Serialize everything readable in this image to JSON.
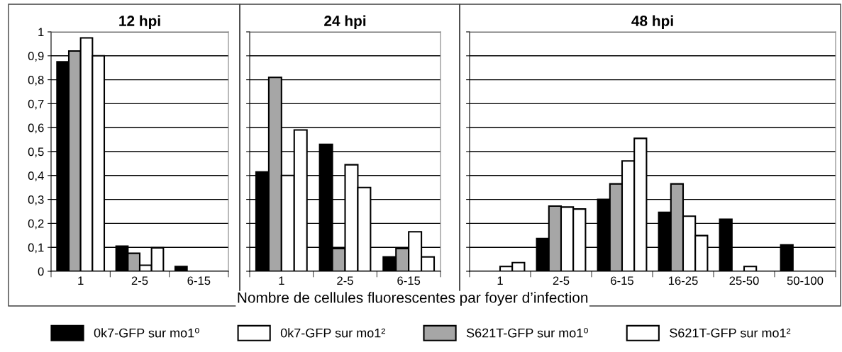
{
  "chart_data": [
    {
      "type": "bar",
      "title": "12 hpi",
      "categories": [
        "1",
        "2-5",
        "6-15"
      ],
      "ylim": [
        0,
        1
      ],
      "yticks": [
        0,
        {
          "value": 0.1,
          "label": "0,1"
        },
        {
          "value": 0.2,
          "label": "0,2"
        },
        {
          "value": 0.3,
          "label": "0,3"
        },
        {
          "value": 0.4,
          "label": "0,4"
        },
        {
          "value": 0.5,
          "label": "0,5"
        },
        {
          "value": 0.6,
          "label": "0,6"
        },
        {
          "value": 0.7,
          "label": "0,7"
        },
        {
          "value": 0.8,
          "label": "0,8"
        },
        {
          "value": 0.9,
          "label": "0,9"
        },
        1
      ],
      "grid": "y",
      "legend": "bottom",
      "series": [
        {
          "name": "0k7-GFP sur mo1⁰",
          "color": "#000000",
          "values": [
            0.875,
            0.105,
            0.02
          ]
        },
        {
          "name": "S621T-GFP sur mo1⁰",
          "color": "#a6a6a6",
          "values": [
            0.92,
            0.075,
            null
          ]
        },
        {
          "name": "0k7-GFP sur mo1²",
          "color": "#ffffff",
          "values": [
            0.975,
            0.025,
            null
          ]
        },
        {
          "name": "S621T-GFP sur mo1²",
          "color": "#ffffff",
          "values": [
            0.9,
            0.098,
            null
          ]
        }
      ]
    },
    {
      "type": "bar",
      "title": "24 hpi",
      "xlabel": "Nombre de cellules fluorescentes par foyer d’infection",
      "categories": [
        "1",
        "2-5",
        "6-15"
      ],
      "ylim": [
        0,
        1
      ],
      "yticks": [
        0,
        0.1,
        0.2,
        0.3,
        0.4,
        0.5,
        0.6,
        0.7,
        0.8,
        0.9,
        1
      ],
      "grid": "y",
      "tick_labels": "x",
      "series": [
        {
          "color": "#000000",
          "values": [
            0.415,
            0.53,
            0.06
          ]
        },
        {
          "color": "#a6a6a6",
          "values": [
            0.81,
            0.095,
            0.095
          ]
        },
        {
          "color": "#ffffff",
          "values": [
            0.4,
            0.445,
            0.165
          ]
        },
        {
          "color": "#ffffff",
          "values": [
            0.59,
            0.35,
            0.06
          ]
        }
      ]
    },
    {
      "type": "bar",
      "title": "48 hpi",
      "categories": [
        "1",
        "2-5",
        "6-15",
        "16-25",
        "25-50",
        "50-100"
      ],
      "ylim": [
        0,
        1
      ],
      "yticks": [
        0,
        0.1,
        0.2,
        0.3,
        0.4,
        0.5,
        0.6,
        0.7,
        0.8,
        0.9,
        1
      ],
      "grid": "y",
      "tick_labels": "x",
      "series": [
        {
          "color": "#000000",
          "values": [
            null,
            0.137,
            0.3,
            0.246,
            0.217,
            0.11
          ]
        },
        {
          "color": "#a6a6a6",
          "values": [
            null,
            0.272,
            0.365,
            0.365,
            null,
            null
          ]
        },
        {
          "color": "#ffffff",
          "values": [
            0.02,
            0.268,
            0.461,
            0.23,
            0.02,
            null
          ]
        },
        {
          "color": "#ffffff",
          "values": [
            0.036,
            0.26,
            0.555,
            0.149,
            null,
            null
          ]
        }
      ]
    }
  ]
}
